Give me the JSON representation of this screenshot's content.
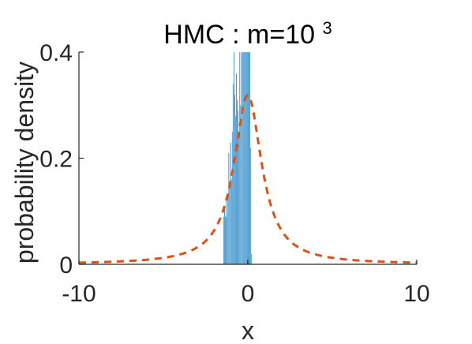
{
  "chart_data": {
    "type": "bar",
    "title": "HMC : m=10",
    "title_superscript": "3",
    "xlabel": "x",
    "ylabel": "probability density",
    "xlim": [
      -10,
      10
    ],
    "ylim": [
      0,
      0.4
    ],
    "x_ticks": [
      -10,
      0,
      10
    ],
    "x_tick_labels": [
      "-10",
      "0",
      "10"
    ],
    "y_ticks": [
      0,
      0.2,
      0.4
    ],
    "y_tick_labels": [
      "0",
      "0.2",
      "0.4"
    ],
    "grid": false,
    "box": false,
    "series": [
      {
        "type": "histogram",
        "color": "#0072BD",
        "bin_width": 0.05,
        "bins": [
          {
            "x": -1.45,
            "y": 0.09
          },
          {
            "x": -1.4,
            "y": 0.11
          },
          {
            "x": -1.35,
            "y": 0.09
          },
          {
            "x": -1.3,
            "y": 0.13
          },
          {
            "x": -1.25,
            "y": 0.09
          },
          {
            "x": -1.2,
            "y": 0.13
          },
          {
            "x": -1.15,
            "y": 0.21
          },
          {
            "x": -1.1,
            "y": 0.15
          },
          {
            "x": -1.05,
            "y": 0.23
          },
          {
            "x": -1.0,
            "y": 0.16
          },
          {
            "x": -0.95,
            "y": 0.25
          },
          {
            "x": -0.9,
            "y": 0.34
          },
          {
            "x": -0.85,
            "y": 0.4
          },
          {
            "x": -0.8,
            "y": 0.32
          },
          {
            "x": -0.75,
            "y": 0.28
          },
          {
            "x": -0.7,
            "y": 0.36
          },
          {
            "x": -0.65,
            "y": 0.31
          },
          {
            "x": -0.6,
            "y": 0.29
          },
          {
            "x": -0.55,
            "y": 0.25
          },
          {
            "x": -0.5,
            "y": 0.4
          },
          {
            "x": -0.45,
            "y": 0.3
          },
          {
            "x": -0.4,
            "y": 0.4
          },
          {
            "x": -0.35,
            "y": 0.4
          },
          {
            "x": -0.3,
            "y": 0.4
          },
          {
            "x": -0.25,
            "y": 0.4
          },
          {
            "x": -0.2,
            "y": 0.4
          },
          {
            "x": -0.15,
            "y": 0.4
          },
          {
            "x": -0.1,
            "y": 0.4
          },
          {
            "x": -0.05,
            "y": 0.4
          },
          {
            "x": 0.0,
            "y": 0.4
          },
          {
            "x": 0.05,
            "y": 0.4
          },
          {
            "x": 0.1,
            "y": 0.4
          },
          {
            "x": 0.15,
            "y": 0.22
          },
          {
            "x": 0.2,
            "y": 0.02
          }
        ]
      },
      {
        "type": "line",
        "color": "#D95319",
        "line_style": "dashed",
        "curve": "cauchy",
        "location": 0,
        "scale": 1,
        "x": [
          -10,
          -8,
          -6,
          -5,
          -4,
          -3,
          -2.5,
          -2,
          -1.5,
          -1,
          -0.75,
          -0.5,
          -0.25,
          0,
          0.25,
          0.5,
          0.75,
          1,
          1.5,
          2,
          2.5,
          3,
          4,
          5,
          6,
          8,
          10
        ],
        "y": [
          0.0032,
          0.0049,
          0.0086,
          0.0122,
          0.0187,
          0.0318,
          0.0439,
          0.0637,
          0.0979,
          0.1592,
          0.2037,
          0.2546,
          0.2996,
          0.3183,
          0.2996,
          0.2546,
          0.2037,
          0.1592,
          0.0979,
          0.0637,
          0.0439,
          0.0318,
          0.0187,
          0.0122,
          0.0086,
          0.0049,
          0.0032
        ]
      }
    ]
  }
}
